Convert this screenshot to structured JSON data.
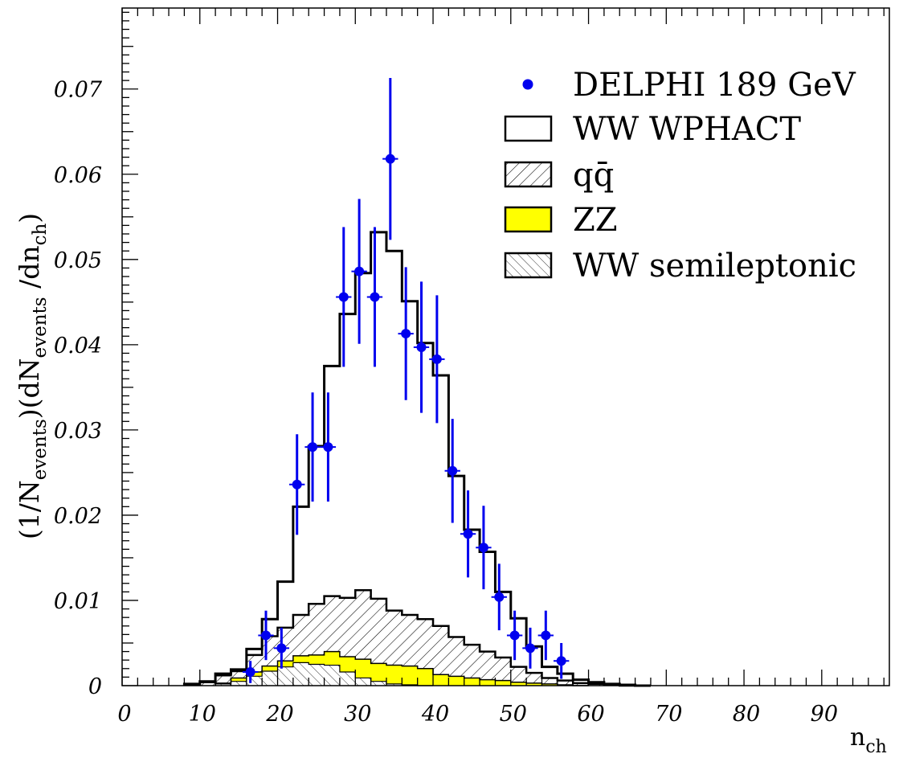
{
  "chart_data": {
    "type": "histogram",
    "xlabel_main": "n",
    "xlabel_sub": "ch",
    "ylabel_segments": [
      {
        "t": "(1/N"
      },
      {
        "t": "events",
        "sub": true
      },
      {
        "t": ")(dN"
      },
      {
        "t": "events",
        "sub": true
      },
      {
        "t": " /dn"
      },
      {
        "t": "ch",
        "sub": true
      },
      {
        "t": ")"
      }
    ],
    "xlim": [
      0,
      98.7
    ],
    "ylim": [
      0,
      0.0795
    ],
    "x_ticks": [
      "0",
      "10",
      "20",
      "30",
      "40",
      "50",
      "60",
      "70",
      "80",
      "90"
    ],
    "y_ticks": [
      "0",
      "0.01",
      "0.02",
      "0.03",
      "0.04",
      "0.05",
      "0.06",
      "0.07"
    ],
    "legend": {
      "position": "top-right",
      "entries": [
        {
          "label": "DELPHI 189 GeV",
          "style": "marker"
        },
        {
          "label": "WW WPHACT",
          "style": "open"
        },
        {
          "label": "qq̄",
          "style": "hatch-up"
        },
        {
          "label": "ZZ",
          "style": "yellow"
        },
        {
          "label": "WW semileptonic",
          "style": "hatch-down"
        }
      ]
    },
    "bin_width": 2,
    "mc_total": {
      "bin_starts": [
        8,
        10,
        12,
        14,
        16,
        18,
        20,
        22,
        24,
        26,
        28,
        30,
        32,
        34,
        36,
        38,
        40,
        42,
        44,
        46,
        48,
        50,
        52,
        54,
        56,
        58,
        60,
        62,
        64,
        66
      ],
      "values": [
        0.0002,
        0.0005,
        0.0014,
        0.0019,
        0.0043,
        0.0078,
        0.0122,
        0.021,
        0.0281,
        0.0375,
        0.0436,
        0.0484,
        0.0532,
        0.051,
        0.0451,
        0.0402,
        0.0364,
        0.0246,
        0.0183,
        0.0157,
        0.011,
        0.0079,
        0.0046,
        0.0022,
        0.0014,
        0.0007,
        0.0004,
        0.0002,
        0.0001,
        0
      ]
    },
    "qq": {
      "bin_starts": [
        8,
        10,
        12,
        14,
        16,
        18,
        20,
        22,
        24,
        26,
        28,
        30,
        32,
        34,
        36,
        38,
        40,
        42,
        44,
        46,
        48,
        50,
        52,
        54,
        56,
        58,
        60,
        62,
        64
      ],
      "values": [
        0.0001,
        0.0004,
        0.0012,
        0.0017,
        0.0036,
        0.0058,
        0.0068,
        0.0083,
        0.0096,
        0.0105,
        0.0103,
        0.0112,
        0.0102,
        0.0088,
        0.0083,
        0.0078,
        0.007,
        0.0057,
        0.0048,
        0.004,
        0.0033,
        0.0022,
        0.0015,
        0.0009,
        0.0006,
        0.0003,
        0.0002,
        0.0001,
        0
      ]
    },
    "zz": {
      "bin_starts": [
        12,
        14,
        16,
        18,
        20,
        22,
        24,
        26,
        28,
        30,
        32,
        34,
        36,
        38,
        40,
        42,
        44,
        46,
        48,
        50,
        52,
        54,
        56,
        58
      ],
      "values": [
        0.0003,
        0.0009,
        0.0016,
        0.0023,
        0.0029,
        0.0035,
        0.0036,
        0.004,
        0.0034,
        0.0031,
        0.0026,
        0.0024,
        0.0023,
        0.002,
        0.0013,
        0.0011,
        0.0009,
        0.0007,
        0.0006,
        0.0004,
        0.0003,
        0.0002,
        0.0001,
        0
      ]
    },
    "ww_semileptonic": {
      "bin_starts": [
        12,
        14,
        16,
        18,
        20,
        22,
        24,
        26,
        28,
        30,
        32,
        34,
        36,
        38
      ],
      "values": [
        0.0002,
        0.0005,
        0.0011,
        0.0017,
        0.0022,
        0.0027,
        0.0025,
        0.0024,
        0.0016,
        0.0009,
        0.0005,
        0.0002,
        0.0001,
        0
      ]
    },
    "data": {
      "x": [
        16.5,
        18.5,
        20.5,
        22.5,
        24.5,
        26.5,
        28.5,
        30.5,
        32.5,
        34.5,
        36.5,
        38.5,
        40.5,
        42.5,
        44.5,
        46.5,
        48.5,
        50.5,
        52.5,
        54.5,
        56.5
      ],
      "y": [
        0.0016,
        0.0059,
        0.0044,
        0.0236,
        0.028,
        0.028,
        0.0456,
        0.0486,
        0.0456,
        0.0618,
        0.0413,
        0.0397,
        0.0383,
        0.0252,
        0.0178,
        0.0162,
        0.0104,
        0.0059,
        0.0044,
        0.0059,
        0.0029
      ],
      "yerr": [
        0.0013,
        0.0029,
        0.0024,
        0.0059,
        0.0064,
        0.0064,
        0.0082,
        0.0085,
        0.0082,
        0.0095,
        0.0078,
        0.0077,
        0.0075,
        0.0061,
        0.0051,
        0.0049,
        0.0039,
        0.0029,
        0.0024,
        0.0029,
        0.0021
      ],
      "xerr": 1.0
    }
  }
}
